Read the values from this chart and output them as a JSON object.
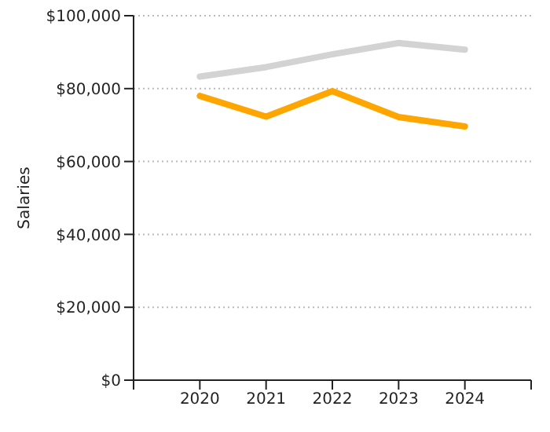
{
  "chart_data": {
    "type": "line",
    "ylabel": "Salaries",
    "x": [
      2020,
      2021,
      2022,
      2023,
      2024
    ],
    "series": [
      {
        "color": "#d3d3d3",
        "values": [
          83300,
          85900,
          89400,
          92500,
          90700
        ]
      },
      {
        "color": "#ffa500",
        "values": [
          78000,
          72300,
          79300,
          72200,
          69600
        ]
      }
    ],
    "xlim": [
      2019,
      2025
    ],
    "xticks": [
      {
        "value": 2019,
        "label": null
      },
      2020,
      2021,
      2022,
      2023,
      2024,
      {
        "value": 2025,
        "label": null
      }
    ],
    "ylim": [
      0,
      100000
    ],
    "yticks": [
      {
        "value": 0,
        "label": "$0"
      },
      {
        "value": 20000,
        "label": "$20,000"
      },
      {
        "value": 40000,
        "label": "$40,000"
      },
      {
        "value": 60000,
        "label": "$60,000"
      },
      {
        "value": 80000,
        "label": "$80,000"
      },
      {
        "value": 100000,
        "label": "$100,000"
      }
    ],
    "grid": "y",
    "legend": false,
    "marker": "none",
    "line_style": "solid"
  }
}
